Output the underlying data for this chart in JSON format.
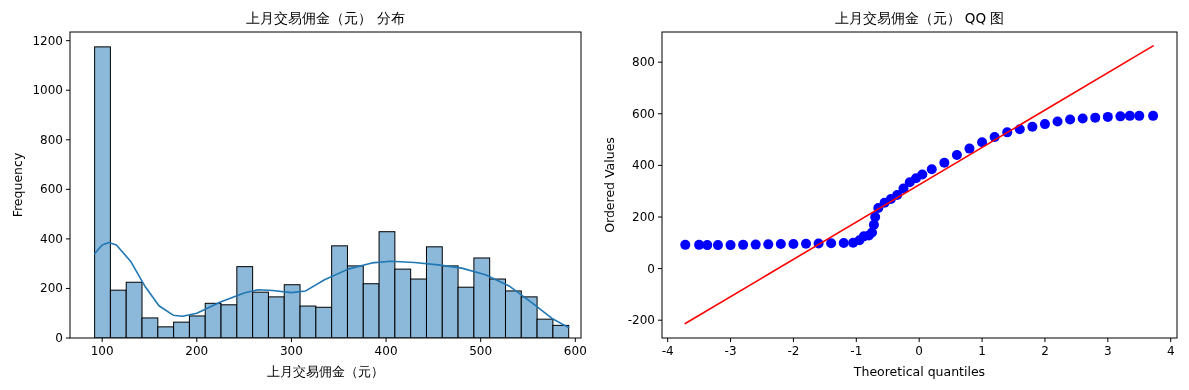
{
  "chart_data": [
    {
      "type": "histogram",
      "title": "上月交易佣金（元） 分布",
      "xlabel": "上月交易佣金（元）",
      "ylabel": "Frequency",
      "xlim": [
        66,
        606
      ],
      "ylim": [
        0,
        1235
      ],
      "xticks": [
        100,
        200,
        300,
        400,
        500,
        600
      ],
      "yticks": [
        0,
        200,
        400,
        600,
        800,
        1000,
        1200
      ],
      "grid": false,
      "bins": [
        92,
        108.7,
        125.4,
        142.1,
        158.8,
        175.5,
        192.2,
        208.9,
        225.6,
        242.3,
        259,
        275.7,
        292.4,
        309.1,
        325.8,
        342.5,
        359.2,
        375.9,
        392.6,
        409.3,
        426,
        442.7,
        459.4,
        476.1,
        492.8,
        509.5,
        526.2,
        542.9,
        559.6,
        576.3,
        593
      ],
      "series": [
        {
          "color": "#8cb8d9",
          "values": [
            1175,
            193,
            225,
            81,
            45,
            64,
            89,
            140,
            134,
            288,
            185,
            166,
            215,
            129,
            124,
            372,
            291,
            219,
            429,
            278,
            238,
            368,
            291,
            205,
            323,
            238,
            190,
            166,
            76,
            51
          ]
        },
        {
          "type": "line",
          "color": "#1f77b4",
          "x": [
            92,
            100,
            107,
            115,
            130,
            145,
            160,
            175,
            185,
            200,
            225,
            250,
            265,
            280,
            300,
            315,
            335,
            360,
            385,
            405,
            430,
            455,
            480,
            505,
            530,
            555,
            575,
            593
          ],
          "values": [
            340,
            375,
            385,
            375,
            310,
            210,
            130,
            92,
            88,
            100,
            145,
            182,
            195,
            192,
            183,
            190,
            235,
            278,
            303,
            310,
            305,
            295,
            282,
            255,
            210,
            140,
            80,
            42
          ]
        }
      ]
    },
    {
      "type": "scatter",
      "title": "上月交易佣金（元） QQ 图",
      "xlabel": "Theoretical quantiles",
      "ylabel": "Ordered Values",
      "xlim": [
        -4.09,
        4.1
      ],
      "ylim": [
        -269,
        917
      ],
      "xticks": [
        -4,
        -3,
        -2,
        -1,
        0,
        1,
        2,
        3,
        4
      ],
      "yticks": [
        -200,
        0,
        200,
        400,
        600,
        800
      ],
      "grid": false,
      "series": [
        {
          "marker": "circle",
          "color": "#0000ff",
          "x": [
            -3.72,
            -3.5,
            -3.37,
            -3.2,
            -3.0,
            -2.8,
            -2.6,
            -2.4,
            -2.2,
            -2.0,
            -1.8,
            -1.6,
            -1.4,
            -1.2,
            -1.05,
            -0.95,
            -0.88,
            -0.8,
            -0.75,
            -0.72,
            -0.7,
            -0.65,
            -0.55,
            -0.45,
            -0.35,
            -0.25,
            -0.15,
            -0.05,
            0.05,
            0.2,
            0.4,
            0.6,
            0.8,
            1.0,
            1.2,
            1.4,
            1.6,
            1.8,
            2.0,
            2.2,
            2.4,
            2.6,
            2.8,
            3.0,
            3.2,
            3.35,
            3.5,
            3.72
          ],
          "values": [
            92,
            92,
            91,
            91,
            91,
            92,
            93,
            94,
            95,
            95,
            96,
            97,
            98,
            99,
            100,
            110,
            125,
            128,
            140,
            170,
            200,
            235,
            255,
            270,
            285,
            310,
            335,
            350,
            365,
            385,
            410,
            440,
            465,
            490,
            510,
            528,
            540,
            550,
            560,
            570,
            578,
            582,
            585,
            588,
            590,
            592,
            592,
            592
          ]
        },
        {
          "type": "line",
          "color": "#ff0000",
          "x": [
            -3.72,
            3.72
          ],
          "values": [
            -213,
            863
          ]
        }
      ]
    }
  ]
}
